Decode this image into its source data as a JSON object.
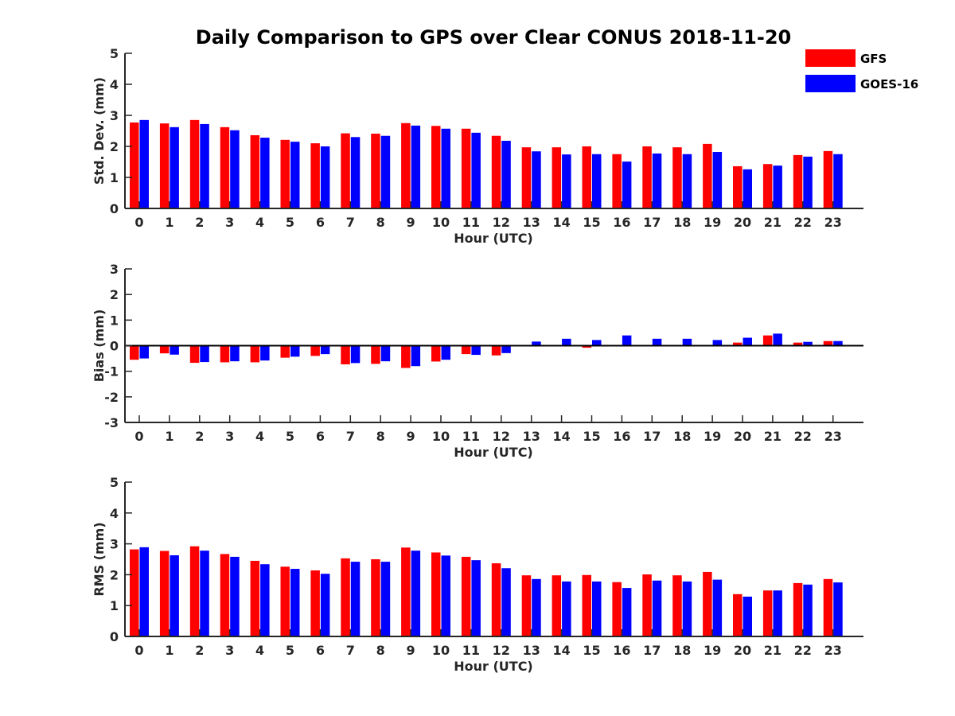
{
  "chart_data": {
    "type": "bar",
    "title": "Daily Comparison to GPS over Clear CONUS 2018-11-20",
    "legend": {
      "position": "top-right",
      "entries": [
        {
          "name": "GFS",
          "color": "#ff0000"
        },
        {
          "name": "GOES-16",
          "color": "#0000ff"
        }
      ]
    },
    "categories": [
      "0",
      "1",
      "2",
      "3",
      "4",
      "5",
      "6",
      "7",
      "8",
      "9",
      "10",
      "11",
      "12",
      "13",
      "14",
      "15",
      "16",
      "17",
      "18",
      "19",
      "20",
      "21",
      "22",
      "23"
    ],
    "panels": [
      {
        "ylabel": "Std. Dev. (mm)",
        "xlabel": "Hour (UTC)",
        "ylim": [
          0,
          5
        ],
        "yticks": [
          0,
          1,
          2,
          3,
          4,
          5
        ],
        "series": [
          {
            "name": "GFS",
            "color": "#ff0000",
            "values": [
              2.77,
              2.74,
              2.85,
              2.62,
              2.36,
              2.21,
              2.1,
              2.42,
              2.41,
              2.75,
              2.66,
              2.57,
              2.34,
              1.97,
              1.97,
              2.0,
              1.75,
              2.0,
              1.97,
              2.08,
              1.36,
              1.43,
              1.72,
              1.85
            ]
          },
          {
            "name": "GOES-16",
            "color": "#0000ff",
            "values": [
              2.85,
              2.62,
              2.72,
              2.52,
              2.28,
              2.15,
              2.0,
              2.3,
              2.34,
              2.67,
              2.57,
              2.44,
              2.18,
              1.84,
              1.74,
              1.75,
              1.51,
              1.77,
              1.75,
              1.82,
              1.26,
              1.38,
              1.67,
              1.75
            ]
          }
        ]
      },
      {
        "ylabel": "Bias (mm)",
        "xlabel": "Hour (UTC)",
        "ylim": [
          -3,
          3
        ],
        "yticks": [
          -3,
          -2,
          -1,
          0,
          1,
          2,
          3
        ],
        "series": [
          {
            "name": "GFS",
            "color": "#ff0000",
            "values": [
              -0.55,
              -0.3,
              -0.67,
              -0.65,
              -0.65,
              -0.47,
              -0.4,
              -0.73,
              -0.71,
              -0.87,
              -0.62,
              -0.33,
              -0.38,
              -0.02,
              0.03,
              -0.08,
              0.0,
              -0.03,
              0.0,
              0.0,
              0.12,
              0.4,
              0.12,
              0.18
            ]
          },
          {
            "name": "GOES-16",
            "color": "#0000ff",
            "values": [
              -0.5,
              -0.35,
              -0.64,
              -0.61,
              -0.58,
              -0.43,
              -0.33,
              -0.68,
              -0.61,
              -0.8,
              -0.55,
              -0.36,
              -0.29,
              0.16,
              0.27,
              0.22,
              0.4,
              0.27,
              0.27,
              0.22,
              0.31,
              0.47,
              0.15,
              0.18
            ]
          }
        ]
      },
      {
        "ylabel": "RMS (mm)",
        "xlabel": "Hour (UTC)",
        "ylim": [
          0,
          5
        ],
        "yticks": [
          0,
          1,
          2,
          3,
          4,
          5
        ],
        "series": [
          {
            "name": "GFS",
            "color": "#ff0000",
            "values": [
              2.82,
              2.77,
              2.92,
              2.67,
              2.45,
              2.26,
              2.14,
              2.53,
              2.5,
              2.88,
              2.72,
              2.58,
              2.37,
              1.98,
              1.98,
              1.99,
              1.76,
              2.01,
              1.98,
              2.09,
              1.37,
              1.49,
              1.73,
              1.86
            ]
          },
          {
            "name": "GOES-16",
            "color": "#0000ff",
            "values": [
              2.89,
              2.63,
              2.78,
              2.58,
              2.34,
              2.19,
              2.03,
              2.42,
              2.42,
              2.78,
              2.62,
              2.47,
              2.21,
              1.86,
              1.78,
              1.78,
              1.57,
              1.81,
              1.78,
              1.84,
              1.29,
              1.49,
              1.68,
              1.75
            ]
          }
        ]
      }
    ]
  }
}
